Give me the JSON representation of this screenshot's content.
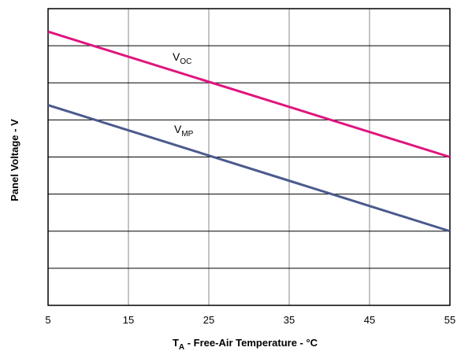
{
  "chart_data": {
    "type": "line",
    "xlabel_main": "T",
    "xlabel_sub": "A",
    "xlabel_rest": " - Free-Air Temperature - °C",
    "ylabel": "Panel Voltage - V",
    "xlim": [
      5,
      55
    ],
    "ylim": [
      0,
      8
    ],
    "x_ticks": [
      "5",
      "15",
      "25",
      "35",
      "45",
      "55"
    ],
    "y_gridlines": 8,
    "grid": true,
    "y_tick_labels_shown": false,
    "series": [
      {
        "name_main": "V",
        "name_sub": "OC",
        "color": "#e0157e",
        "x": [
          5,
          55
        ],
        "y": [
          7.38,
          4.0
        ]
      },
      {
        "name_main": "V",
        "name_sub": "MP",
        "color": "#4a5a8c",
        "x": [
          5,
          55
        ],
        "y": [
          5.4,
          2.0
        ]
      }
    ]
  }
}
